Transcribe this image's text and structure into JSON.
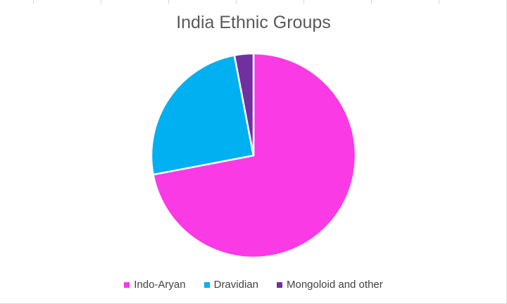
{
  "chart_data": {
    "type": "pie",
    "title": "India Ethnic Groups",
    "categories": [
      "Indo-Aryan",
      "Dravidian",
      "Mongoloid and other"
    ],
    "values": [
      72,
      25,
      3
    ],
    "colors": [
      "#f93ae5",
      "#00b0f0",
      "#7030a0"
    ],
    "legend_position": "bottom"
  }
}
